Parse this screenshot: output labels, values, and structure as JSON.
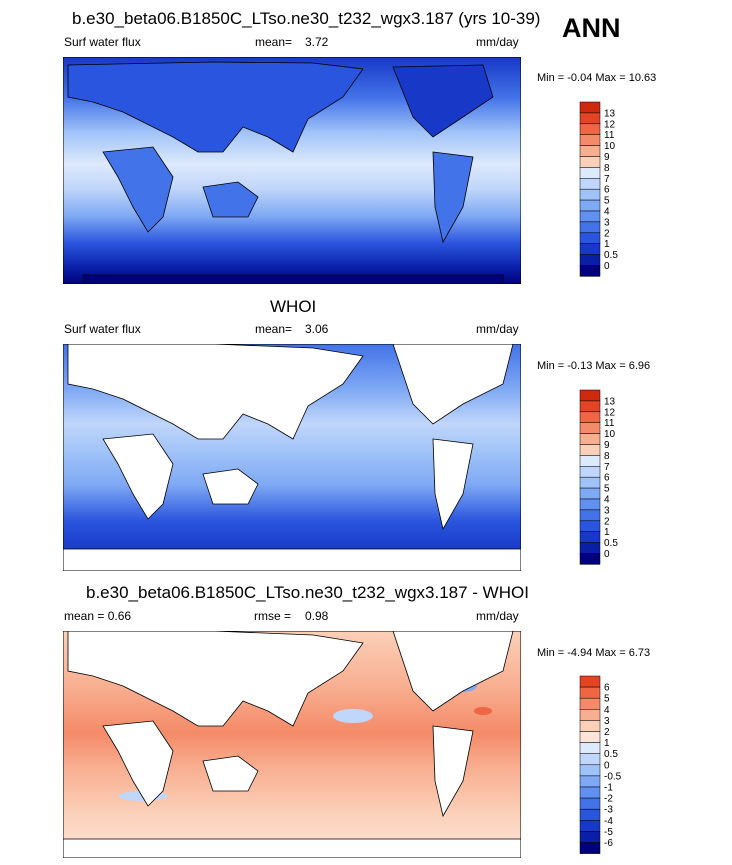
{
  "season": "ANN",
  "colors": {
    "abs_levels": [
      "#00007e",
      "#0a1fa8",
      "#1838c8",
      "#2a55de",
      "#4373e8",
      "#6090f0",
      "#7fa9f4",
      "#9fc2f8",
      "#c0d6fa",
      "#dde9fc",
      "#fbd0b8",
      "#f8ae90",
      "#f48a68",
      "#ee6644",
      "#e44424",
      "#cf2a10",
      "#a01005"
    ],
    "diff_levels": [
      "#00007e",
      "#0a1fa8",
      "#1838c8",
      "#2a55de",
      "#4373e8",
      "#6090f0",
      "#7fa9f4",
      "#9fc2f8",
      "#c0d6fa",
      "#dde9fc",
      "#fce4d8",
      "#fbd0b8",
      "#f8ae90",
      "#f48a68",
      "#ee6644",
      "#e44424",
      "#cf2a10",
      "#a01005"
    ]
  },
  "panels": [
    {
      "title": "b.e30_beta06.B1850C_LTso.ne30_t232_wgx3.187 (yrs 10-39)",
      "left_label": "Surf water flux",
      "stat_label": "mean=",
      "stat_value": "3.72",
      "units": "mm/day",
      "minmax": "Min =  -0.04 Max =  10.63"
    },
    {
      "title": "WHOI",
      "left_label": "Surf water flux",
      "stat_label": "mean=",
      "stat_value": "3.06",
      "units": "mm/day",
      "minmax": "Min =  -0.13 Max =   6.96"
    },
    {
      "title": "b.e30_beta06.B1850C_LTso.ne30_t232_wgx3.187 - WHOI",
      "left_label": "mean =   0.66",
      "stat_label": "rmse =",
      "stat_value": "0.98",
      "units": "mm/day",
      "minmax": "Min =  -4.94 Max =   6.73"
    }
  ],
  "chart_data": [
    {
      "type": "heatmap",
      "title": "b.e30_beta06.B1850C_LTso.ne30_t232_wgx3.187 (yrs 10-39)",
      "variable": "Surf water flux",
      "units": "mm/day",
      "mean": 3.72,
      "min": -0.04,
      "max": 10.63,
      "colorbar_levels": [
        "13",
        "12",
        "11",
        "10",
        "9",
        "8",
        "7",
        "6",
        "5",
        "4",
        "3",
        "2",
        "1",
        "0.5",
        "0"
      ]
    },
    {
      "type": "heatmap",
      "title": "WHOI",
      "variable": "Surf water flux",
      "units": "mm/day",
      "mean": 3.06,
      "min": -0.13,
      "max": 6.96,
      "colorbar_levels": [
        "13",
        "12",
        "11",
        "10",
        "9",
        "8",
        "7",
        "6",
        "5",
        "4",
        "3",
        "2",
        "1",
        "0.5",
        "0"
      ]
    },
    {
      "type": "heatmap",
      "title": "b.e30_beta06.B1850C_LTso.ne30_t232_wgx3.187 - WHOI",
      "units": "mm/day",
      "mean": 0.66,
      "rmse": 0.98,
      "min": -4.94,
      "max": 6.73,
      "colorbar_levels": [
        "6",
        "5",
        "4",
        "3",
        "2",
        "1",
        "0.5",
        "0",
        "-0.5",
        "-1",
        "-2",
        "-3",
        "-4",
        "-5",
        "-6"
      ]
    }
  ]
}
